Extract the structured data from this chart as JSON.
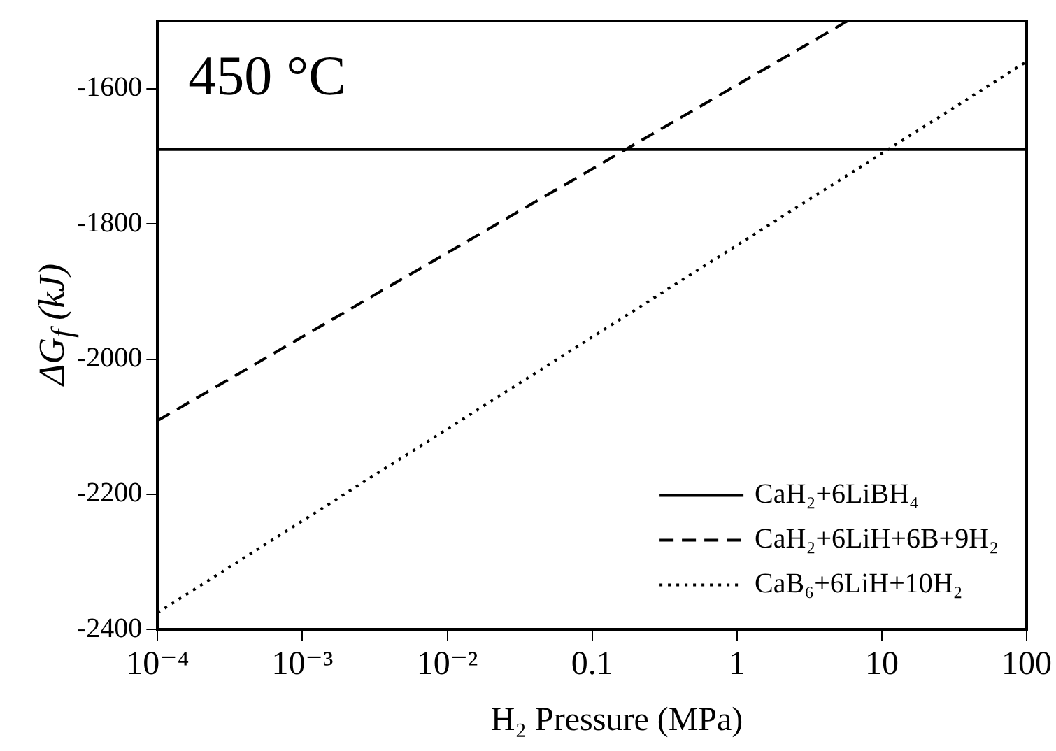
{
  "chart_data": {
    "type": "line",
    "xlabel": "H₂ Pressure (MPa)",
    "ylabel": "ΔG$_{f}$ (kJ)",
    "annotations": [
      "450 °C"
    ],
    "log": "x",
    "xlim": [
      0.0001,
      100
    ],
    "xticks": [
      {
        "value": 0.0001,
        "label": "10⁻⁴"
      },
      {
        "value": 0.001,
        "label": "10⁻³"
      },
      {
        "value": 0.01,
        "label": "10⁻²"
      },
      0.1,
      1,
      10,
      100
    ],
    "ylim": [
      -2400,
      -1500
    ],
    "yticks": [
      -2400,
      -2200,
      -2000,
      -1800,
      -1600
    ],
    "grid": false,
    "legend": "bottom right",
    "marker": "none",
    "series": [
      {
        "name": "CaH₂+6LiBH₄",
        "color": "#000000",
        "line_style": "solid",
        "x": [
          0.0001,
          100
        ],
        "values": [
          -1690,
          -1690
        ]
      },
      {
        "name": "CaH₂+6LiH+6B+9H₂",
        "color": "#000000",
        "line_style": "dashed",
        "x": [
          0.0001,
          5.8
        ],
        "values": [
          -2091,
          -1500
        ]
      },
      {
        "name": "CaB₆+6LiH+10H₂",
        "color": "#000000",
        "line_style": "dotted",
        "x": [
          0.0001,
          100
        ],
        "values": [
          -2375,
          -1560
        ]
      }
    ]
  }
}
